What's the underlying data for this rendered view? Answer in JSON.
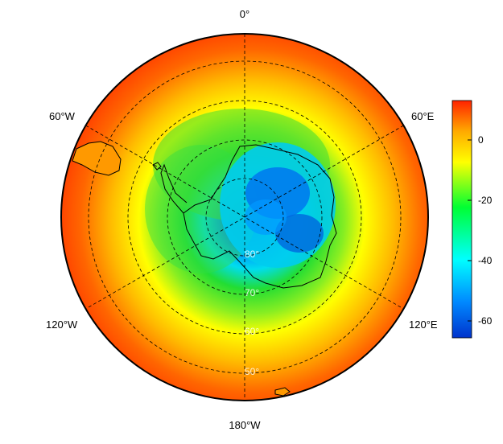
{
  "map": {
    "projection": "south-polar-stereographic",
    "lon_labels": {
      "top": "0°",
      "upper_left": "60°W",
      "upper_right": "60°E",
      "lower_left": "120°W",
      "lower_right": "120°E",
      "bottom": "180°W"
    },
    "lat_labels": [
      "80°",
      "70°",
      "60°",
      "50°"
    ],
    "graticule_style": "dashed"
  },
  "colorbar": {
    "ticks": [
      "0",
      "-20",
      "-40",
      "-60"
    ],
    "colors": [
      "#0033cc",
      "#0088ff",
      "#00ffff",
      "#00ff33",
      "#ffff00",
      "#ffaa00",
      "#ff2200"
    ]
  },
  "chart_data": {
    "type": "heatmap",
    "title": "",
    "colorbar_range": [
      -66,
      13
    ],
    "colorbar_ticks": [
      0,
      -20,
      -40,
      -60
    ]
  }
}
